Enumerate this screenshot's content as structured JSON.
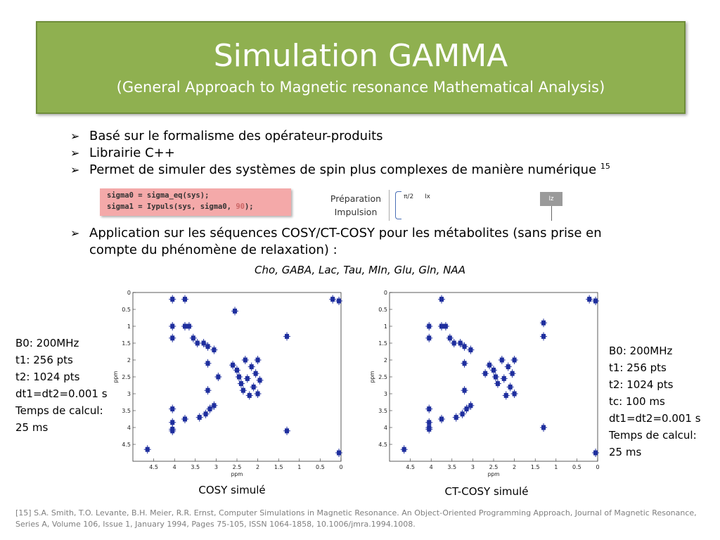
{
  "slide": {
    "title": "Simulation GAMMA",
    "subtitle": "(General Approach to Magnetic resonance Mathematical Analysis)"
  },
  "bullets": [
    {
      "text": "Basé sur le formalisme des opérateur-produits"
    },
    {
      "text": "Librairie C++"
    },
    {
      "text": "Permet de simuler des systèmes de spin plus complexes de manière numérique ",
      "sup": "15"
    },
    {
      "text": "Application sur les séquences COSY/CT-COSY pour les métabolites (sans prise en compte du phénomène de relaxation) :"
    }
  ],
  "code": {
    "line1": "sigma0 = sigma_eq(sys);",
    "line2_pre": "sigma1 = Iypuls(sys, sigma0, ",
    "line2_num": "90",
    "line2_post": ");"
  },
  "pulse_diagram": {
    "label1": "Préparation",
    "label2": "Impulsion",
    "angle": "π/2",
    "op1": "Ix",
    "op2": "Iz"
  },
  "metabolites": "Cho, GABA, Lac, Tau, MIn, Glu, Gln, NAA",
  "params_left": [
    "B0: 200MHz",
    "t1: 256 pts",
    "t2: 1024 pts",
    "dt1=dt2=0.001 s",
    "Temps de calcul:",
    "25 ms"
  ],
  "params_right": [
    "B0: 200MHz",
    "t1: 256 pts",
    "t2: 1024 pts",
    "tc: 100 ms",
    "dt1=dt2=0.001 s",
    "Temps de calcul:",
    "25 ms"
  ],
  "captions": {
    "cosy": "COSY simulé",
    "ctcosy": "CT-COSY simulé"
  },
  "reference": "[15] S.A. Smith, T.O. Levante, B.H. Meier, R.R. Ernst, Computer Simulations in Magnetic Resonance. An Object-Oriented Programming Approach, Journal of Magnetic Resonance, Series A, Volume 106, Issue 1, January 1994, Pages 75-105, ISSN 1064-1858, 10.1006/jmra.1994.1008.",
  "colors": {
    "title_bg": "#8fb050",
    "code_bg": "#f4a9a9",
    "peak": "#1f2f9e"
  },
  "chart_data": [
    {
      "type": "scatter",
      "name": "cosy",
      "xlabel": "ppm",
      "ylabel": "ppm",
      "xlim": [
        5,
        0
      ],
      "ylim": [
        0,
        5
      ],
      "xticks": [
        4.5,
        4,
        3.5,
        3,
        2.5,
        2,
        1.5,
        1,
        0.5,
        0
      ],
      "xtick_labels": [
        "4.5",
        "4",
        "3.5",
        "3",
        "2.5",
        "2",
        "1.5",
        "1",
        "0.5",
        "0"
      ],
      "yticks": [
        0,
        0.5,
        1,
        1.5,
        2,
        2.5,
        3,
        3.5,
        4,
        4.5
      ],
      "ytick_labels": [
        "0",
        "0.5",
        "1",
        "1.5",
        "2",
        "2.5",
        "3",
        "3.5",
        "4",
        "4.5"
      ],
      "peaks": [
        [
          4.65,
          4.65
        ],
        [
          4.05,
          4.05
        ],
        [
          4.05,
          1.0
        ],
        [
          4.05,
          3.45
        ],
        [
          4.05,
          1.35
        ],
        [
          4.05,
          3.85
        ],
        [
          3.75,
          1.0
        ],
        [
          3.75,
          3.75
        ],
        [
          3.65,
          1.0
        ],
        [
          3.55,
          1.35
        ],
        [
          3.45,
          1.5
        ],
        [
          3.4,
          3.7
        ],
        [
          3.3,
          1.5
        ],
        [
          3.25,
          3.6
        ],
        [
          3.2,
          1.6
        ],
        [
          3.15,
          3.45
        ],
        [
          3.05,
          3.35
        ],
        [
          3.05,
          1.7
        ],
        [
          3.2,
          2.1
        ],
        [
          3.2,
          2.9
        ],
        [
          2.95,
          2.5
        ],
        [
          2.6,
          2.15
        ],
        [
          2.5,
          2.3
        ],
        [
          2.45,
          2.5
        ],
        [
          2.4,
          2.7
        ],
        [
          2.35,
          2.9
        ],
        [
          2.3,
          2.0
        ],
        [
          2.25,
          2.55
        ],
        [
          2.2,
          3.05
        ],
        [
          2.15,
          2.2
        ],
        [
          2.1,
          2.8
        ],
        [
          2.05,
          2.4
        ],
        [
          2.0,
          2.0
        ],
        [
          2.0,
          3.0
        ],
        [
          1.95,
          2.6
        ],
        [
          1.3,
          1.3
        ],
        [
          1.3,
          4.1
        ],
        [
          4.05,
          4.1
        ],
        [
          2.55,
          0.55
        ],
        [
          0.2,
          0.2
        ],
        [
          0.05,
          0.25
        ],
        [
          0.05,
          4.75
        ],
        [
          3.75,
          0.2
        ],
        [
          4.05,
          0.2
        ]
      ]
    },
    {
      "type": "scatter",
      "name": "ct-cosy",
      "xlabel": "ppm",
      "ylabel": "ppm",
      "xlim": [
        5,
        0
      ],
      "ylim": [
        0,
        5
      ],
      "xticks": [
        4.5,
        4,
        3.5,
        3,
        2.5,
        2,
        1.5,
        1,
        0.5,
        0
      ],
      "xtick_labels": [
        "4.5",
        "4",
        "3.5",
        "3",
        "2.5",
        "2",
        "1.5",
        "1",
        "0.5",
        "0"
      ],
      "yticks": [
        0,
        0.5,
        1,
        1.5,
        2,
        2.5,
        3,
        3.5,
        4,
        4.5
      ],
      "ytick_labels": [
        "0",
        "0.5",
        "1",
        "1.5",
        "2",
        "2.5",
        "3",
        "3.5",
        "4",
        "4.5"
      ],
      "peaks": [
        [
          4.65,
          4.65
        ],
        [
          4.05,
          4.05
        ],
        [
          4.05,
          1.0
        ],
        [
          4.05,
          3.45
        ],
        [
          4.05,
          1.35
        ],
        [
          4.05,
          3.85
        ],
        [
          3.75,
          1.0
        ],
        [
          3.75,
          3.75
        ],
        [
          3.65,
          1.0
        ],
        [
          3.55,
          1.35
        ],
        [
          3.45,
          1.5
        ],
        [
          3.4,
          3.7
        ],
        [
          3.3,
          1.5
        ],
        [
          3.25,
          3.6
        ],
        [
          3.2,
          1.6
        ],
        [
          3.15,
          3.45
        ],
        [
          3.05,
          3.35
        ],
        [
          3.05,
          1.7
        ],
        [
          3.2,
          2.1
        ],
        [
          3.2,
          2.9
        ],
        [
          2.7,
          2.4
        ],
        [
          2.6,
          2.15
        ],
        [
          2.5,
          2.3
        ],
        [
          2.45,
          2.5
        ],
        [
          2.4,
          2.7
        ],
        [
          2.3,
          2.0
        ],
        [
          2.25,
          2.55
        ],
        [
          2.2,
          3.05
        ],
        [
          2.15,
          2.2
        ],
        [
          2.1,
          2.8
        ],
        [
          2.05,
          2.4
        ],
        [
          2.0,
          2.0
        ],
        [
          2.0,
          3.0
        ],
        [
          1.3,
          1.3
        ],
        [
          1.3,
          4.0
        ],
        [
          1.3,
          0.9
        ],
        [
          4.05,
          4.0
        ],
        [
          3.75,
          0.2
        ],
        [
          0.2,
          0.2
        ],
        [
          0.05,
          0.25
        ],
        [
          0.05,
          4.75
        ]
      ]
    }
  ]
}
